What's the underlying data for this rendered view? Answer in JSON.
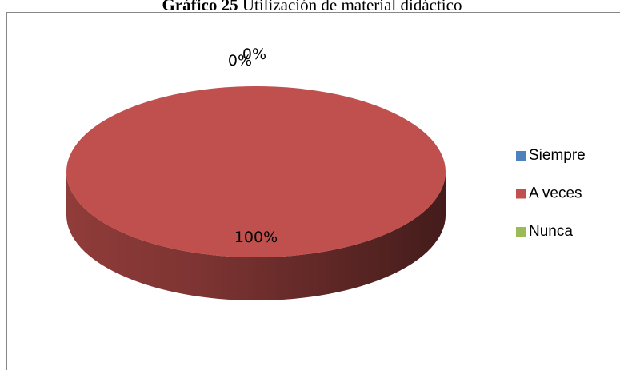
{
  "chart_data": {
    "type": "pie3d",
    "title_label": "Gráfico 25",
    "title": "Utilización de material didáctico",
    "categories": [
      "Siempre",
      "A veces",
      "Nunca"
    ],
    "values": [
      0,
      100,
      0
    ],
    "value_labels": [
      "0%",
      "100%",
      "0%"
    ],
    "colors": [
      "#4f81bd",
      "#c0504d",
      "#9bbb59"
    ],
    "legend": "right"
  }
}
